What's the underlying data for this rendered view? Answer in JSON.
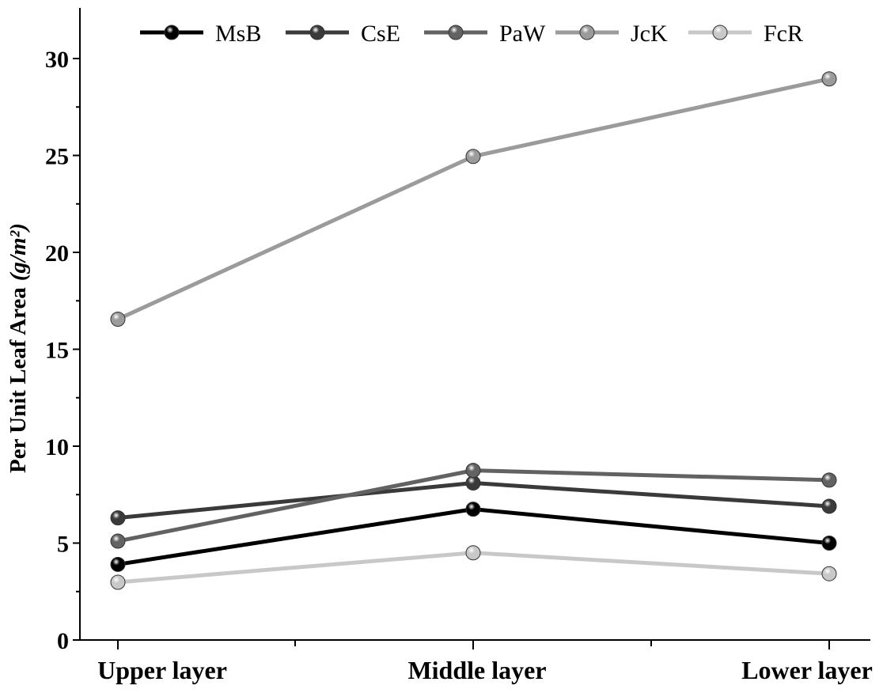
{
  "chart_data": {
    "type": "line",
    "title": "",
    "xlabel": "",
    "ylabel_main": "Per Unit Leaf Area",
    "ylabel_unit": "(g/m²)",
    "categories": [
      "Upper layer",
      "Middle layer",
      "Lower layer"
    ],
    "ylim": [
      0,
      32.5
    ],
    "yticks": [
      0,
      5,
      10,
      15,
      20,
      25,
      30
    ],
    "ytick_labels": [
      "0",
      "5",
      "10",
      "15",
      "20",
      "25",
      "30"
    ],
    "legend_position": "top",
    "series": [
      {
        "name": "MsB",
        "color": "#000000",
        "values": [
          3.9,
          6.75,
          5.0
        ]
      },
      {
        "name": "CsE",
        "color": "#3a3a3a",
        "values": [
          6.3,
          8.1,
          6.9
        ]
      },
      {
        "name": "PaW",
        "color": "#626262",
        "values": [
          5.1,
          8.75,
          8.25
        ]
      },
      {
        "name": "JcK",
        "color": "#9b9b9b",
        "values": [
          16.55,
          24.95,
          28.95
        ]
      },
      {
        "name": "FcR",
        "color": "#c8c8c8",
        "values": [
          2.98,
          4.5,
          3.42
        ]
      }
    ]
  }
}
